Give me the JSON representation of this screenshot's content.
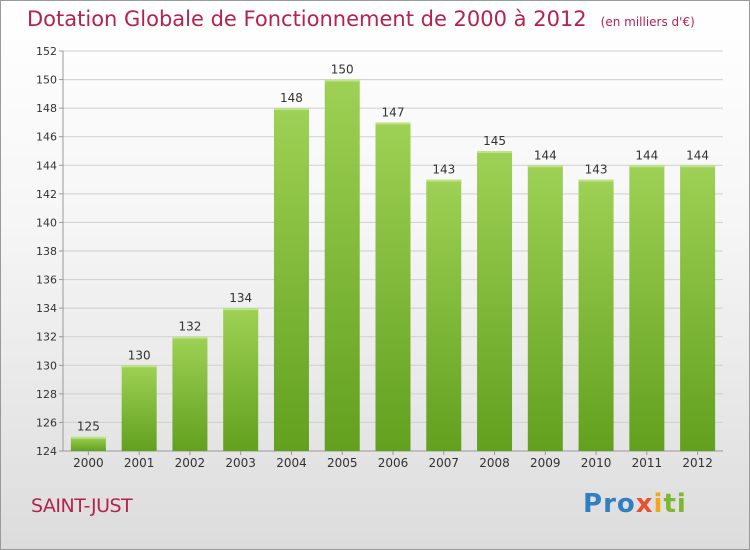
{
  "header": {
    "title": "Dotation Globale de Fonctionnement de 2000 à 2012",
    "unit": "(en milliers d'€)"
  },
  "footer": {
    "commune": "SAINT-JUST",
    "logo": "Proxiti",
    "logo_letters": [
      {
        "char": "P",
        "color": "#2f7fc1"
      },
      {
        "char": "r",
        "color": "#2f7fc1"
      },
      {
        "char": "o",
        "color": "#2f7fc1"
      },
      {
        "char": "x",
        "color": "#e8502b"
      },
      {
        "char": "i",
        "color": "#f2a71b"
      },
      {
        "char": "t",
        "color": "#7cb82f"
      },
      {
        "char": "i",
        "color": "#7cb82f"
      }
    ]
  },
  "chart_data": {
    "type": "bar",
    "title": "Dotation Globale de Fonctionnement de 2000 à 2012",
    "ylabel": "",
    "xlabel": "",
    "categories": [
      "2000",
      "2001",
      "2002",
      "2003",
      "2004",
      "2005",
      "2006",
      "2007",
      "2008",
      "2009",
      "2010",
      "2011",
      "2012"
    ],
    "values": [
      125,
      130,
      132,
      134,
      148,
      150,
      147,
      143,
      145,
      144,
      143,
      144,
      144
    ],
    "data_labels": [
      "125",
      "130",
      "132",
      "134",
      "148",
      "150",
      "147",
      "143",
      "145",
      "144",
      "143",
      "144",
      "144"
    ],
    "ylim": [
      124,
      152
    ],
    "yticks": [
      "124",
      "126",
      "128",
      "130",
      "132",
      "134",
      "136",
      "138",
      "140",
      "142",
      "144",
      "146",
      "148",
      "150",
      "152"
    ],
    "grid": true,
    "colors": {
      "bar_top": "#9ed155",
      "bar_bottom": "#62a01e",
      "grid": "#cfcfcf",
      "axis_text": "#333333",
      "title": "#b5224f"
    }
  }
}
